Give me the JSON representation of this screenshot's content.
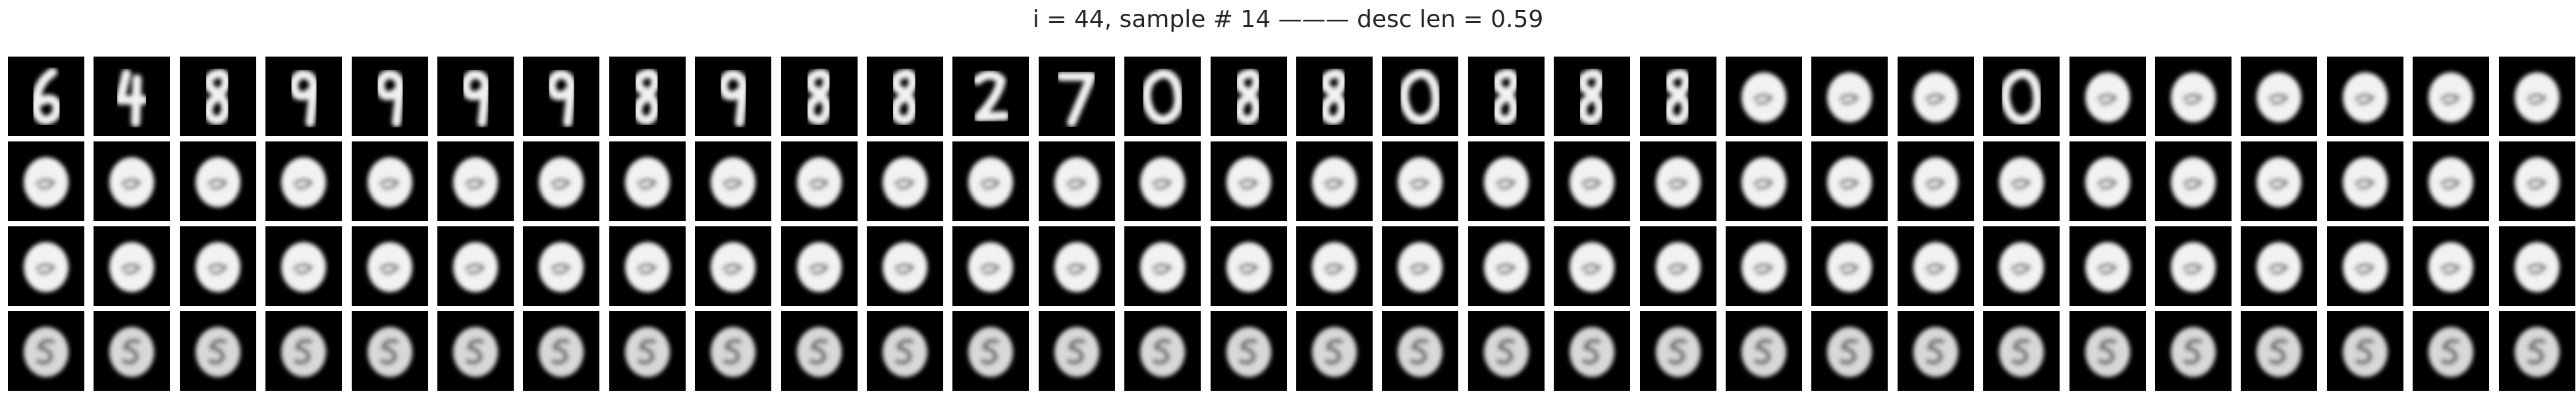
{
  "figure": {
    "title": "i = 44, sample # 14 ——— desc len = 0.59"
  },
  "panel_grid": {
    "rows": 4,
    "columns": 30,
    "row_digits": [
      [
        "6",
        "4",
        "8",
        "9",
        "9",
        "9",
        "9",
        "8",
        "9",
        "8",
        "8",
        "2",
        "7",
        "0",
        "8",
        "8",
        "0",
        "8",
        "8",
        "8",
        "e",
        "e",
        "e",
        "0",
        "e",
        "e",
        "e",
        "e",
        "e",
        "e"
      ],
      [
        "e",
        "e",
        "e",
        "e",
        "e",
        "e",
        "e",
        "e",
        "e",
        "e",
        "e",
        "e",
        "e",
        "e",
        "e",
        "e",
        "e",
        "e",
        "e",
        "e",
        "e",
        "e",
        "e",
        "e",
        "e",
        "e",
        "e",
        "e",
        "e",
        "e"
      ],
      [
        "e",
        "e",
        "e",
        "e",
        "e",
        "e",
        "e",
        "e",
        "e",
        "e",
        "e",
        "e",
        "e",
        "e",
        "e",
        "e",
        "e",
        "e",
        "e",
        "e",
        "e",
        "e",
        "e",
        "e",
        "e",
        "e",
        "e",
        "e",
        "e",
        "e"
      ],
      [
        "s",
        "s",
        "s",
        "s",
        "s",
        "s",
        "s",
        "s",
        "s",
        "s",
        "s",
        "s",
        "s",
        "s",
        "s",
        "s",
        "s",
        "s",
        "s",
        "s",
        "s",
        "s",
        "s",
        "s",
        "s",
        "s",
        "s",
        "s",
        "s",
        "s"
      ]
    ],
    "panel_background": "#000000",
    "digit_color": "#f2f2f2",
    "figure_background": "#ffffff"
  }
}
